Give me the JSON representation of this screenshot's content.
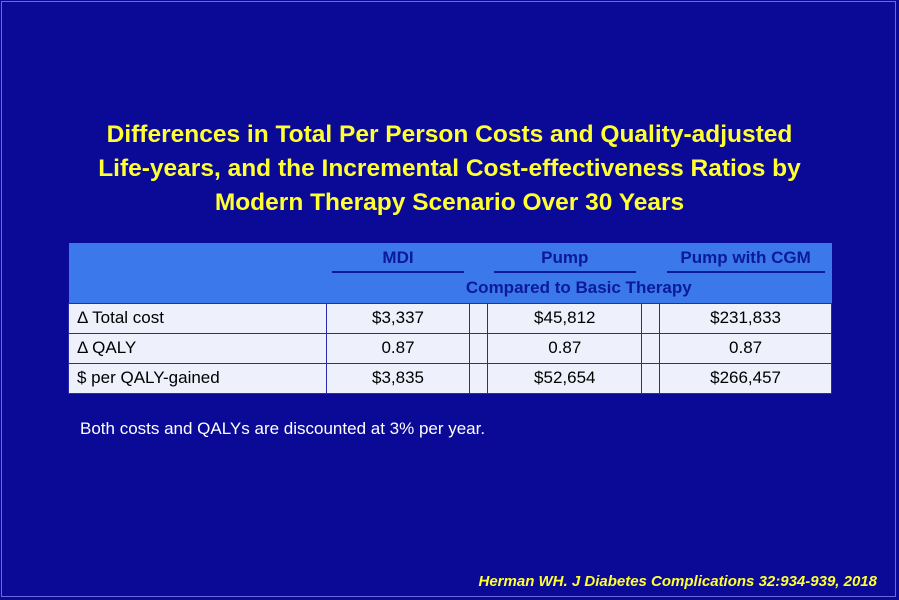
{
  "title_lines": [
    "Differences in Total Per Person Costs and Quality-adjusted",
    "Life-years, and the Incremental Cost-effectiveness Ratios by",
    "Modern Therapy Scenario Over 30 Years"
  ],
  "table": {
    "columns": [
      "MDI",
      "Pump",
      "Pump with CGM"
    ],
    "subheader": "Compared to Basic Therapy",
    "rows": [
      {
        "label": "Δ Total cost",
        "values": [
          "$3,337",
          "$45,812",
          "$231,833"
        ]
      },
      {
        "label": "Δ QALY",
        "values": [
          "0.87",
          "0.87",
          "0.87"
        ]
      },
      {
        "label": "$ per QALY-gained",
        "values": [
          "$3,835",
          "$52,654",
          "$266,457"
        ]
      }
    ]
  },
  "note": "Both costs and QALYs are discounted at 3% per year.",
  "citation": "Herman WH. J Diabetes Complications 32:934-939, 2018"
}
